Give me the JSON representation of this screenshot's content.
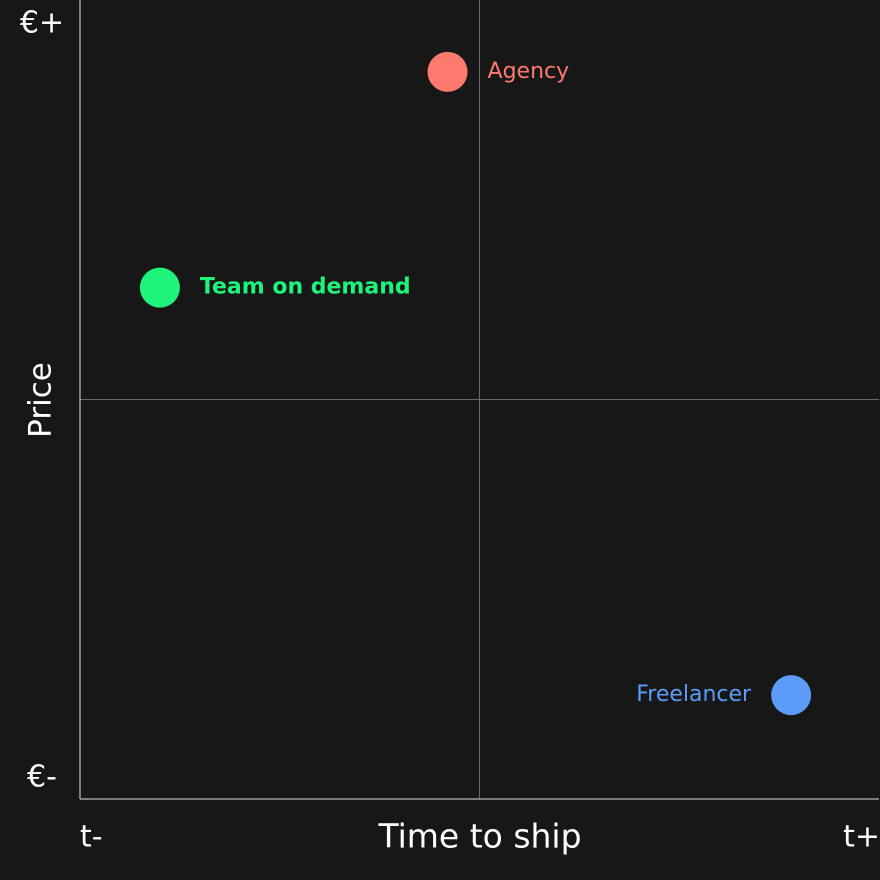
{
  "chart_data": {
    "type": "scatter",
    "x_label": "Time to ship",
    "y_label": "Price",
    "xlim": [
      0,
      1
    ],
    "ylim": [
      0,
      1
    ],
    "xticks": [
      {
        "value": 0,
        "label": "t-"
      },
      {
        "value": 1,
        "label": "t+"
      }
    ],
    "yticks": [
      {
        "value": 0,
        "label": "€-"
      },
      {
        "value": 1,
        "label": "€+"
      }
    ],
    "series": [
      {
        "name": "Agency",
        "color": "#ff7a6e",
        "x": [
          0.46
        ],
        "values": [
          0.91
        ]
      },
      {
        "name": "Team on demand",
        "color": "#1ef47c",
        "font_weight": "bold",
        "x": [
          0.1
        ],
        "values": [
          0.64
        ]
      },
      {
        "name": "Freelancer",
        "color": "#5c9cf8",
        "x": [
          0.89
        ],
        "values": [
          0.13
        ]
      }
    ]
  }
}
